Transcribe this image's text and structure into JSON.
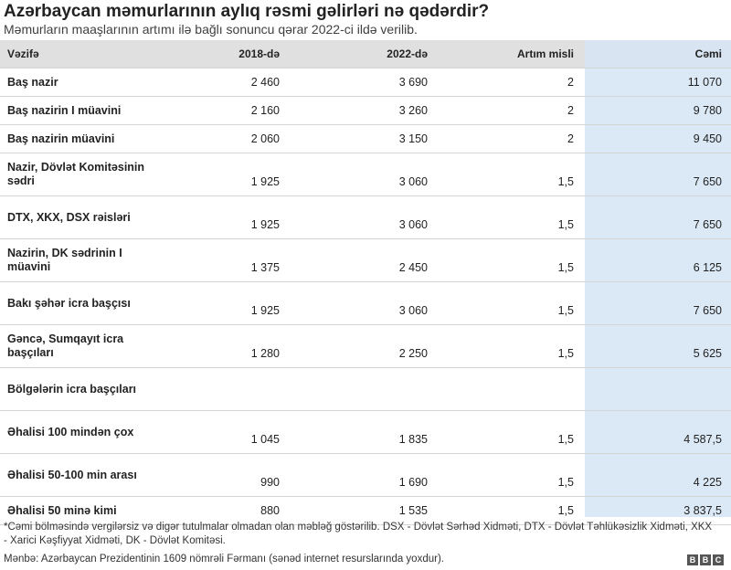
{
  "title": "Azərbaycan məmurlarının aylıq rəsmi gəlirləri nə qədərdir?",
  "subtitle": "Məmurların maaşlarının artımı ilə bağlı sonuncu qərar 2022-ci ildə verilib.",
  "columns": [
    "Vəzifə",
    "2018-də",
    "2022-də",
    "Artım misli",
    "Cəmi"
  ],
  "rows": [
    {
      "role": "Baş nazir",
      "y2018": "2 460",
      "y2022": "3 690",
      "ratio": "2",
      "total": "11 070"
    },
    {
      "role": "Baş nazirin I müavini",
      "y2018": "2 160",
      "y2022": "3 260",
      "ratio": "2",
      "total": "9 780"
    },
    {
      "role": "Baş nazirin müavini",
      "y2018": "2 060",
      "y2022": "3 150",
      "ratio": "2",
      "total": "9 450"
    },
    {
      "role": "Nazir, Dövlət Komitəsinin sədri",
      "y2018": "1 925",
      "y2022": "3 060",
      "ratio": "1,5",
      "total": "7 650"
    },
    {
      "role": "DTX, XKX, DSX rəisləri",
      "y2018": "1 925",
      "y2022": "3 060",
      "ratio": "1,5",
      "total": "7 650"
    },
    {
      "role": "Nazirin, DK sədrinin I müavini",
      "y2018": "1 375",
      "y2022": "2 450",
      "ratio": "1,5",
      "total": "6 125"
    },
    {
      "role": "Bakı şəhər icra başçısı",
      "y2018": "1 925",
      "y2022": "3 060",
      "ratio": "1,5",
      "total": "7 650"
    },
    {
      "role": "Gəncə, Sumqayıt icra başçıları",
      "y2018": "1 280",
      "y2022": "2 250",
      "ratio": "1,5",
      "total": "5 625"
    },
    {
      "role": "Bölgələrin icra başçıları",
      "y2018": "",
      "y2022": "",
      "ratio": "",
      "total": ""
    },
    {
      "role": "Əhalisi 100 mindən çox",
      "y2018": "1 045",
      "y2022": "1 835",
      "ratio": "1,5",
      "total": "4 587,5"
    },
    {
      "role": "Əhalisi 50-100 min arası",
      "y2018": "990",
      "y2022": "1 690",
      "ratio": "1,5",
      "total": "4 225"
    },
    {
      "role": "Əhalisi 50 minə kimi",
      "y2018": "880",
      "y2022": "1 535",
      "ratio": "1,5",
      "total": "3 837,5"
    }
  ],
  "note": "*Cəmi bölməsində vergilərsiz və digər tutulmalar olmadan olan məbləğ göstərilib. DSX - Dövlət Sərhəd Xidməti, DTX - Dövlət Təhlükəsizlik Xidməti, XKX - Xarici Kəşfiyyat Xidməti, DK - Dövlət Komitəsi.",
  "source": "Mənbə: Azərbaycan Prezidentinin 1609 nömrəli Fərmanı (sənəd internet resurslarında yoxdur).",
  "logo": [
    "B",
    "B",
    "C"
  ]
}
